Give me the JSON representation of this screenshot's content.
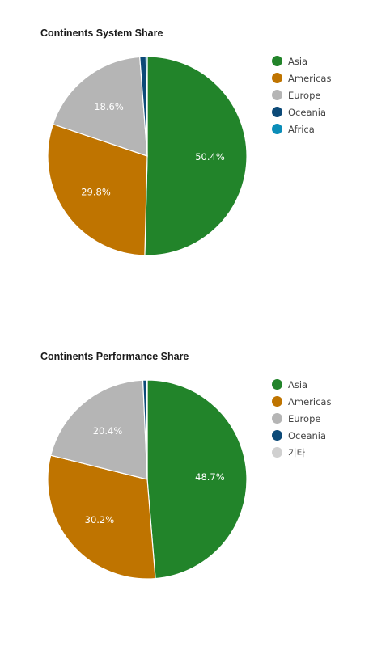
{
  "chart_data": [
    {
      "type": "pie",
      "title": "Continents System Share",
      "slices": [
        {
          "name": "Asia",
          "value": 50.4,
          "color": "#22842a",
          "label": "50.4%"
        },
        {
          "name": "Americas",
          "value": 29.8,
          "color": "#bf7400",
          "label": "29.8%"
        },
        {
          "name": "Europe",
          "value": 18.6,
          "color": "#b5b5b5",
          "label": "18.6%"
        },
        {
          "name": "Oceania",
          "value": 1.0,
          "color": "#0c4a78",
          "label": ""
        },
        {
          "name": "Africa",
          "value": 0.2,
          "color": "#0b8db8",
          "label": ""
        }
      ],
      "legend": [
        {
          "name": "Asia",
          "color": "#22842a"
        },
        {
          "name": "Americas",
          "color": "#bf7400"
        },
        {
          "name": "Europe",
          "color": "#b5b5b5"
        },
        {
          "name": "Oceania",
          "color": "#0c4a78"
        },
        {
          "name": "Africa",
          "color": "#0b8db8"
        }
      ]
    },
    {
      "type": "pie",
      "title": "Continents Performance Share",
      "slices": [
        {
          "name": "Asia",
          "value": 48.7,
          "color": "#22842a",
          "label": "48.7%"
        },
        {
          "name": "Americas",
          "value": 30.2,
          "color": "#bf7400",
          "label": "30.2%"
        },
        {
          "name": "Europe",
          "value": 20.4,
          "color": "#b5b5b5",
          "label": "20.4%"
        },
        {
          "name": "Oceania",
          "value": 0.6,
          "color": "#0c4a78",
          "label": ""
        },
        {
          "name": "기타",
          "value": 0.1,
          "color": "#d0d0d0",
          "label": ""
        }
      ],
      "legend": [
        {
          "name": "Asia",
          "color": "#22842a"
        },
        {
          "name": "Americas",
          "color": "#bf7400"
        },
        {
          "name": "Europe",
          "color": "#b5b5b5"
        },
        {
          "name": "Oceania",
          "color": "#0c4a78"
        },
        {
          "name": "기타",
          "color": "#d0d0d0"
        }
      ]
    }
  ]
}
